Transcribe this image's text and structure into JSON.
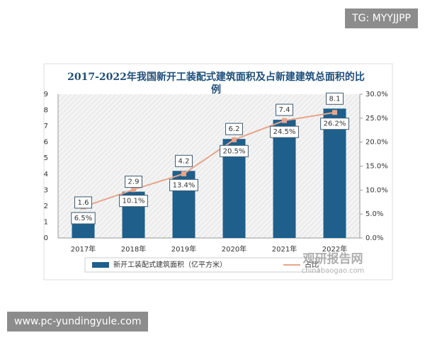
{
  "chart_data": {
    "type": "bar",
    "title": "2017-2022年我国新开工装配式建筑面积及占新建建筑总面积的比例",
    "categories": [
      "2017年",
      "2018年",
      "2019年",
      "2020年",
      "2021年",
      "2022年"
    ],
    "series": [
      {
        "name": "新开工装配式建筑面积（亿平方米）",
        "type": "bar",
        "color": "#1f5f8b",
        "values": [
          1.6,
          2.9,
          4.2,
          6.2,
          7.4,
          8.1
        ]
      },
      {
        "name": "占比",
        "type": "line",
        "axis": "y2",
        "color": "#e8a58a",
        "values": [
          6.5,
          10.1,
          13.4,
          20.5,
          24.5,
          26.2
        ],
        "value_labels": [
          "6.5%",
          "10.1%",
          "13.4%",
          "20.5%",
          "24.5%",
          "26.2%"
        ]
      }
    ],
    "ylim": [
      0,
      9
    ],
    "yticks": [
      0,
      1,
      2,
      3,
      4,
      5,
      6,
      7,
      8,
      9
    ],
    "y2lim": [
      0,
      30
    ],
    "y2ticks": [
      {
        "value": 0,
        "label": "0.0%"
      },
      {
        "value": 5,
        "label": "5.0%"
      },
      {
        "value": 10,
        "label": "10.0%"
      },
      {
        "value": 15,
        "label": "15.0%"
      },
      {
        "value": 20,
        "label": "20.0%"
      },
      {
        "value": 25,
        "label": "25.0%"
      },
      {
        "value": 30,
        "label": "30.0%"
      }
    ],
    "grid": false
  },
  "overlays": {
    "top_badge": "TG: MYYJJPP",
    "bottom_url": "www.pc-yundingyule.com",
    "watermark": "观研报告网",
    "watermark_url": "chinabaogao.com"
  }
}
